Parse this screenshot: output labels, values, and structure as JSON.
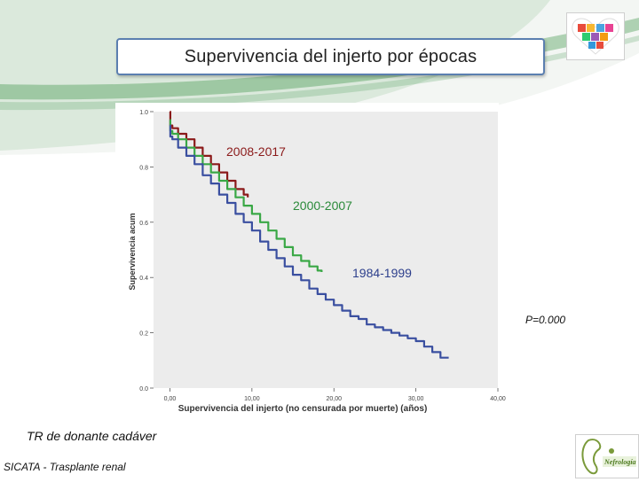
{
  "slide": {
    "title": "Supervivencia del injerto por épocas",
    "footer_title": "TR de donante cadáver",
    "footer_subtitle": "SICATA - Trasplante renal",
    "logo_text": "Nefrología"
  },
  "colors": {
    "green_swoosh": "#2e8b3a",
    "title_border": "#5b7fb0",
    "series_2008": "#8b1a1a",
    "series_2000": "#3aa846",
    "series_1984": "#3a4fa0",
    "plot_bg": "#ececec"
  },
  "chart_data": {
    "type": "line",
    "title": "",
    "xlabel": "Supervivencia del injerto (no censurada por muerte) (años)",
    "ylabel": "Supervivencia acum",
    "xlim": [
      -2,
      40
    ],
    "ylim": [
      0,
      1.0
    ],
    "x_ticks": [
      "0,00",
      "10,00",
      "20,00",
      "30,00",
      "40,00"
    ],
    "y_ticks": [
      "0.0",
      "0.2",
      "0.4",
      "0.6",
      "0.8",
      "1.0"
    ],
    "x_tick_values": [
      0,
      10,
      20,
      30,
      40
    ],
    "y_tick_values": [
      0,
      0.2,
      0.4,
      0.6,
      0.8,
      1.0
    ],
    "grid": false,
    "annotation": "P=0.000",
    "series": [
      {
        "name": "2008-2017",
        "color": "#8b1a1a",
        "x": [
          0,
          0.05,
          0.3,
          1,
          2,
          3,
          4,
          5,
          6,
          7,
          8,
          9,
          9.5
        ],
        "y": [
          1.0,
          0.95,
          0.94,
          0.92,
          0.9,
          0.87,
          0.84,
          0.81,
          0.78,
          0.75,
          0.72,
          0.7,
          0.69
        ]
      },
      {
        "name": "2000-2007",
        "color": "#3aa846",
        "x": [
          0,
          0.05,
          0.3,
          1,
          2,
          3,
          4,
          5,
          6,
          7,
          8,
          9,
          10,
          11,
          12,
          13,
          14,
          15,
          16,
          17,
          18,
          18.5
        ],
        "y": [
          0.97,
          0.93,
          0.92,
          0.9,
          0.87,
          0.84,
          0.81,
          0.78,
          0.75,
          0.72,
          0.69,
          0.66,
          0.63,
          0.6,
          0.57,
          0.54,
          0.51,
          0.48,
          0.46,
          0.44,
          0.425,
          0.42
        ]
      },
      {
        "name": "1984-1999",
        "color": "#3a4fa0",
        "x": [
          0,
          0.05,
          0.3,
          1,
          2,
          3,
          4,
          5,
          6,
          7,
          8,
          9,
          10,
          11,
          12,
          13,
          14,
          15,
          16,
          17,
          18,
          19,
          20,
          21,
          22,
          23,
          24,
          25,
          26,
          27,
          28,
          29,
          30,
          31,
          32,
          33,
          34
        ],
        "y": [
          0.95,
          0.91,
          0.9,
          0.87,
          0.84,
          0.81,
          0.77,
          0.74,
          0.7,
          0.67,
          0.63,
          0.6,
          0.57,
          0.53,
          0.5,
          0.47,
          0.44,
          0.41,
          0.39,
          0.36,
          0.34,
          0.32,
          0.3,
          0.28,
          0.26,
          0.25,
          0.23,
          0.22,
          0.21,
          0.2,
          0.19,
          0.18,
          0.17,
          0.15,
          0.13,
          0.11,
          0.11
        ]
      }
    ]
  }
}
